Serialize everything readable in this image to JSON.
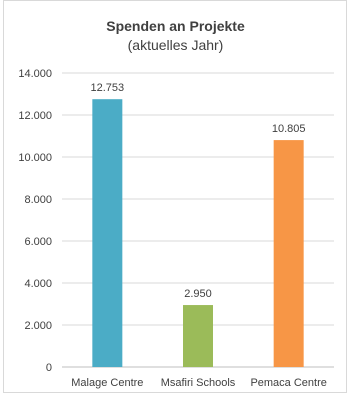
{
  "chart_data": {
    "type": "bar",
    "title": "Spenden an Projekte",
    "subtitle": "(aktuelles Jahr)",
    "xlabel": "",
    "ylabel": "",
    "ylim": [
      0,
      14000
    ],
    "yticks": [
      0,
      2000,
      4000,
      6000,
      8000,
      10000,
      12000,
      14000
    ],
    "ytick_labels": [
      "0",
      "2.000",
      "4.000",
      "6.000",
      "8.000",
      "10.000",
      "12.000",
      "14.000"
    ],
    "grid": true,
    "categories": [
      "Malage Centre",
      "Msafiri Schools",
      "Pemaca Centre"
    ],
    "values": [
      12753,
      2950,
      10805
    ],
    "data_labels": [
      "12.753",
      "2.950",
      "10.805"
    ],
    "colors": [
      "#4bacc6",
      "#9bbb59",
      "#f79646"
    ]
  }
}
